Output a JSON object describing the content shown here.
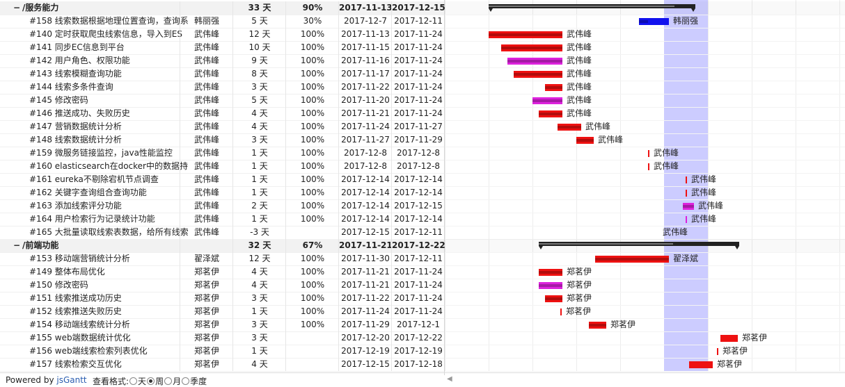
{
  "colors": {
    "highlight": "#ccccff",
    "red": "#ee1111",
    "magenta": "#dd22dd",
    "blue": "#1111ee",
    "group": "#222222"
  },
  "timeline": {
    "chart_start": "2017-11-06",
    "highlight_start": "2017-12-11",
    "highlight_end": "2017-12-17"
  },
  "rows": [
    {
      "group": true,
      "fold": "−",
      "name": "/服务能力",
      "res": "",
      "dur": "33 天",
      "comp": "90%",
      "start": "2017-11-13",
      "end": "2017-12-15",
      "pct": 90
    },
    {
      "name": "#158 线索数据根据地理位置查询，查询系",
      "res": "韩丽强",
      "dur": "5 天",
      "comp": "30%",
      "start": "2017-12-7",
      "end": "2017-12-11",
      "color": "blue",
      "pct": 30
    },
    {
      "name": "#140 定时获取爬虫线索信息，导入到ES",
      "res": "武伟峰",
      "dur": "12 天",
      "comp": "100%",
      "start": "2017-11-13",
      "end": "2017-11-24",
      "color": "red",
      "pct": 100
    },
    {
      "name": "#141 同步EC信息到平台",
      "res": "武伟峰",
      "dur": "10 天",
      "comp": "100%",
      "start": "2017-11-15",
      "end": "2017-11-24",
      "color": "red",
      "pct": 100
    },
    {
      "name": "#142 用户角色、权限功能",
      "res": "武伟峰",
      "dur": "9 天",
      "comp": "100%",
      "start": "2017-11-16",
      "end": "2017-11-24",
      "color": "magenta",
      "pct": 100
    },
    {
      "name": "#143 线索模糊查询功能",
      "res": "武伟峰",
      "dur": "8 天",
      "comp": "100%",
      "start": "2017-11-17",
      "end": "2017-11-24",
      "color": "red",
      "pct": 100
    },
    {
      "name": "#144 线索多条件查询",
      "res": "武伟峰",
      "dur": "3 天",
      "comp": "100%",
      "start": "2017-11-22",
      "end": "2017-11-24",
      "color": "red",
      "pct": 100
    },
    {
      "name": "#145 修改密码",
      "res": "武伟峰",
      "dur": "5 天",
      "comp": "100%",
      "start": "2017-11-20",
      "end": "2017-11-24",
      "color": "magenta",
      "pct": 100
    },
    {
      "name": "#146 推送成功、失败历史",
      "res": "武伟峰",
      "dur": "4 天",
      "comp": "100%",
      "start": "2017-11-21",
      "end": "2017-11-24",
      "color": "red",
      "pct": 100
    },
    {
      "name": "#147 营销数据统计分析",
      "res": "武伟峰",
      "dur": "4 天",
      "comp": "100%",
      "start": "2017-11-24",
      "end": "2017-11-27",
      "color": "red",
      "pct": 100
    },
    {
      "name": "#148 线索数据统计分析",
      "res": "武伟峰",
      "dur": "3 天",
      "comp": "100%",
      "start": "2017-11-27",
      "end": "2017-11-29",
      "color": "red",
      "pct": 100
    },
    {
      "name": "#159 微服务链接监控，java性能监控",
      "res": "武伟峰",
      "dur": "1 天",
      "comp": "100%",
      "start": "2017-12-8",
      "end": "2017-12-8",
      "color": "red",
      "pct": 100,
      "milestone": true
    },
    {
      "name": "#160 elasticsearch在docker中的数据持",
      "res": "武伟峰",
      "dur": "1 天",
      "comp": "100%",
      "start": "2017-12-8",
      "end": "2017-12-8",
      "color": "red",
      "pct": 100,
      "milestone": true
    },
    {
      "name": "#161 eureka不剔除宕机节点调查",
      "res": "武伟峰",
      "dur": "1 天",
      "comp": "100%",
      "start": "2017-12-14",
      "end": "2017-12-14",
      "color": "red",
      "pct": 100,
      "milestone": true
    },
    {
      "name": "#162 关键字查询组合查询功能",
      "res": "武伟峰",
      "dur": "1 天",
      "comp": "100%",
      "start": "2017-12-14",
      "end": "2017-12-14",
      "color": "red",
      "pct": 100,
      "milestone": true
    },
    {
      "name": "#163 添加线索评分功能",
      "res": "武伟峰",
      "dur": "2 天",
      "comp": "100%",
      "start": "2017-12-14",
      "end": "2017-12-15",
      "color": "magenta",
      "pct": 100
    },
    {
      "name": "#164 用户检索行为记录统计功能",
      "res": "武伟峰",
      "dur": "1 天",
      "comp": "100%",
      "start": "2017-12-14",
      "end": "2017-12-14",
      "color": "magenta",
      "pct": 100,
      "milestone": true
    },
    {
      "name": "#165 大批量读取线索表数据，给所有线索",
      "res": "武伟峰",
      "dur": "-3 天",
      "comp": "",
      "start": "2017-12-15",
      "end": "2017-12-11",
      "color": "red",
      "pct": 0,
      "nobar": true
    },
    {
      "group": true,
      "fold": "−",
      "name": "/前端功能",
      "res": "",
      "dur": "32 天",
      "comp": "67%",
      "start": "2017-11-21",
      "end": "2017-12-22",
      "pct": 67
    },
    {
      "name": "#153 移动端营销统计分析",
      "res": "翟泽斌",
      "dur": "12 天",
      "comp": "100%",
      "start": "2017-11-30",
      "end": "2017-12-11",
      "color": "red",
      "pct": 100
    },
    {
      "name": "#149 整体布局优化",
      "res": "郑茗伊",
      "dur": "4 天",
      "comp": "100%",
      "start": "2017-11-21",
      "end": "2017-11-24",
      "color": "red",
      "pct": 100
    },
    {
      "name": "#150 修改密码",
      "res": "郑茗伊",
      "dur": "4 天",
      "comp": "100%",
      "start": "2017-11-21",
      "end": "2017-11-24",
      "color": "magenta",
      "pct": 100
    },
    {
      "name": "#151 线索推送成功历史",
      "res": "郑茗伊",
      "dur": "3 天",
      "comp": "100%",
      "start": "2017-11-22",
      "end": "2017-11-24",
      "color": "red",
      "pct": 100
    },
    {
      "name": "#152 线索推送失败历史",
      "res": "郑茗伊",
      "dur": "1 天",
      "comp": "100%",
      "start": "2017-11-24",
      "end": "2017-11-24",
      "color": "red",
      "pct": 100,
      "milestone": true
    },
    {
      "name": "#154 移动端线索统计分析",
      "res": "郑茗伊",
      "dur": "3 天",
      "comp": "100%",
      "start": "2017-11-29",
      "end": "2017-12-1",
      "color": "red",
      "pct": 100
    },
    {
      "name": "#155 web端数据统计优化",
      "res": "郑茗伊",
      "dur": "3 天",
      "comp": "",
      "start": "2017-12-20",
      "end": "2017-12-22",
      "color": "red",
      "pct": 0
    },
    {
      "name": "#156 web端线索检索列表优化",
      "res": "郑茗伊",
      "dur": "1 天",
      "comp": "",
      "start": "2017-12-19",
      "end": "2017-12-19",
      "color": "red",
      "pct": 0,
      "milestone": true
    },
    {
      "name": "#157 线索检索交互优化",
      "res": "郑茗伊",
      "dur": "4 天",
      "comp": "",
      "start": "2017-12-15",
      "end": "2017-12-18",
      "color": "red",
      "pct": 0
    }
  ],
  "footer": {
    "powered_prefix": "Powered by ",
    "powered_link": "jsGantt",
    "format_label": "查看格式:",
    "formats": [
      "天",
      "周",
      "月",
      "季度"
    ],
    "selected_format": "周"
  }
}
